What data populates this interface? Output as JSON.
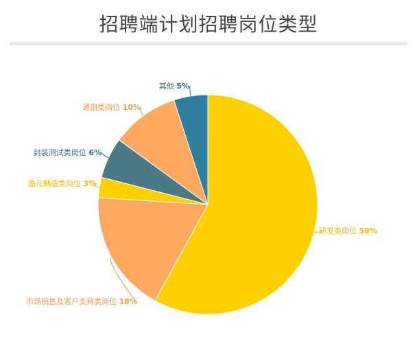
{
  "chart_data": {
    "type": "pie",
    "title": "招聘端计划招聘岗位类型",
    "slices": [
      {
        "label": "研发类岗位",
        "value": 58,
        "color": "#ffd000"
      },
      {
        "label": "市场销售及客户支持类岗位",
        "value": 18,
        "color": "#ffa85f"
      },
      {
        "label": "晶元制造类岗位",
        "value": 3,
        "color": "#ffd000"
      },
      {
        "label": "封装测试类岗位",
        "value": 6,
        "color": "#4a7a85"
      },
      {
        "label": "通用类岗位",
        "value": 10,
        "color": "#ffa85f"
      },
      {
        "label": "其他",
        "value": 5,
        "color": "#2f7f9f"
      }
    ],
    "unit": "%",
    "legend": "none"
  }
}
